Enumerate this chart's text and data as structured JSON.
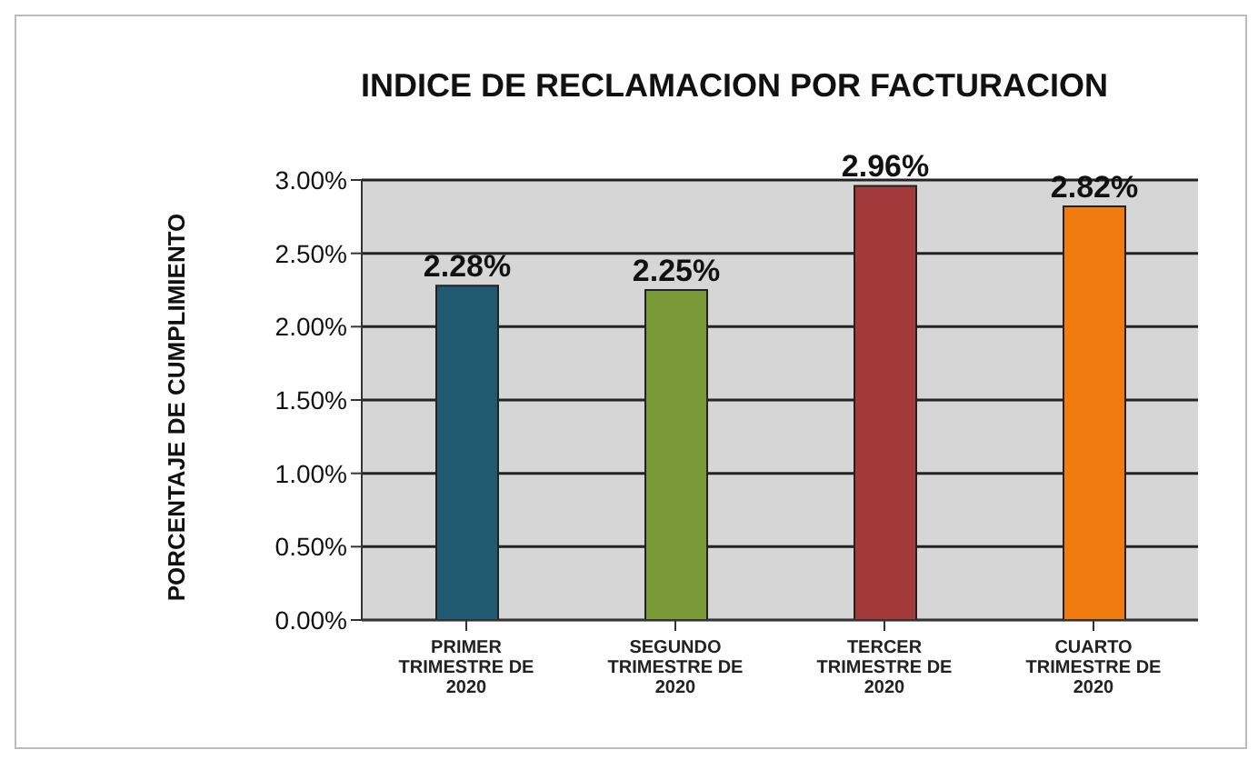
{
  "chart_data": {
    "type": "bar",
    "title": "INDICE DE RECLAMACION POR FACTURACION",
    "ylabel": "PORCENTAJE DE CUMPLIMIENTO",
    "categories": [
      "PRIMER TRIMESTRE DE 2020",
      "SEGUNDO TRIMESTRE DE 2020",
      "TERCER TRIMESTRE DE 2020",
      "CUARTO TRIMESTRE DE 2020"
    ],
    "values": [
      2.28,
      2.25,
      2.96,
      2.82
    ],
    "colors": [
      "#1f5a70",
      "#7a9a3a",
      "#a33a3a",
      "#f07c10"
    ],
    "value_labels": [
      "2.28%",
      "2.25%",
      "2.96%",
      "2.82%"
    ],
    "ylim": [
      0,
      3
    ],
    "yticks": [
      {
        "value": 0,
        "label": "0.00%"
      },
      {
        "value": 0.5,
        "label": "0.50%"
      },
      {
        "value": 1,
        "label": "1.00%"
      },
      {
        "value": 1.5,
        "label": "1.50%"
      },
      {
        "value": 2,
        "label": "2.00%"
      },
      {
        "value": 2.5,
        "label": "2.50%"
      },
      {
        "value": 3,
        "label": "3.00%"
      }
    ],
    "grid": "y",
    "legend": false
  }
}
